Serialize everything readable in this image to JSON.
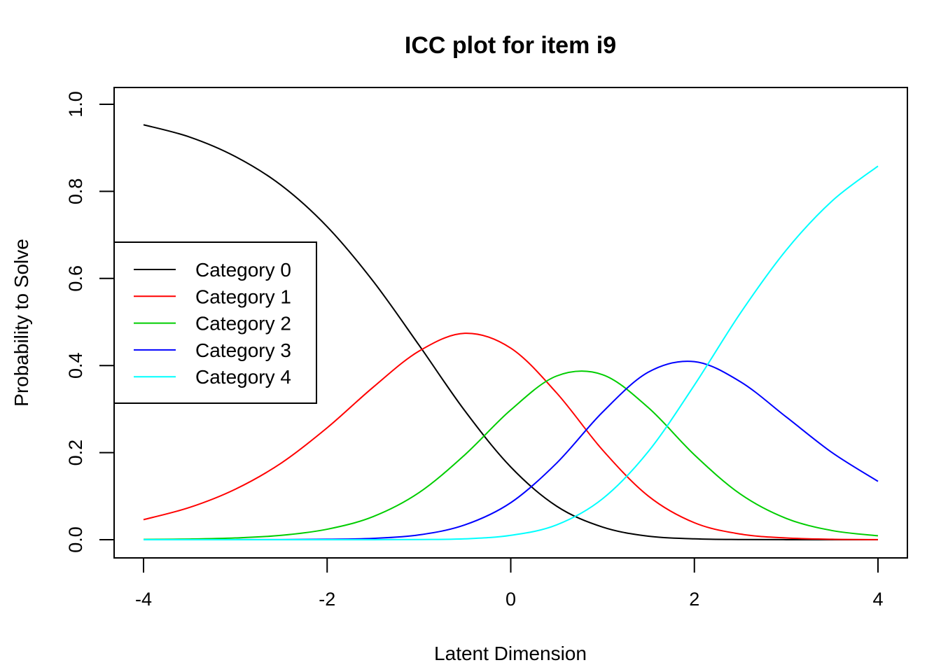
{
  "chart_data": {
    "type": "line",
    "title": "ICC plot for item i9",
    "xlabel": "Latent Dimension",
    "ylabel": "Probability to Solve",
    "xlim": [
      -4,
      4
    ],
    "ylim": [
      0,
      1
    ],
    "x_ticks": [
      "-4",
      "-2",
      "0",
      "2",
      "4"
    ],
    "y_ticks": [
      "0.0",
      "0.2",
      "0.4",
      "0.6",
      "0.8",
      "1.0"
    ],
    "grid": false,
    "legend_position": "left",
    "x": [
      -4,
      -3.5,
      -3,
      -2.5,
      -2,
      -1.5,
      -1,
      -0.5,
      0,
      0.5,
      1,
      1.5,
      2,
      2.5,
      3,
      3.5,
      4
    ],
    "series": [
      {
        "name": "Category 0",
        "color": "#000000",
        "values": [
          0.953,
          0.925,
          0.88,
          0.814,
          0.719,
          0.594,
          0.447,
          0.296,
          0.167,
          0.077,
          0.029,
          0.008,
          0.002,
          0.0004,
          0.0001,
          0.0,
          0.0
        ]
      },
      {
        "name": "Category 1",
        "color": "#FF0000",
        "values": [
          0.046,
          0.074,
          0.116,
          0.176,
          0.257,
          0.35,
          0.433,
          0.474,
          0.44,
          0.337,
          0.206,
          0.1,
          0.039,
          0.013,
          0.004,
          0.001,
          0.0002
        ]
      },
      {
        "name": "Category 2",
        "color": "#00CD00",
        "values": [
          0.0006,
          0.0015,
          0.004,
          0.01,
          0.024,
          0.053,
          0.108,
          0.195,
          0.298,
          0.376,
          0.379,
          0.303,
          0.195,
          0.105,
          0.049,
          0.021,
          0.009
        ]
      },
      {
        "name": "Category 3",
        "color": "#0000FF",
        "values": [
          0.0,
          0.0,
          0.0001,
          0.0002,
          0.001,
          0.003,
          0.011,
          0.034,
          0.085,
          0.176,
          0.293,
          0.385,
          0.409,
          0.363,
          0.282,
          0.2,
          0.134
        ]
      },
      {
        "name": "Category 4",
        "color": "#00FFFF",
        "values": [
          0.0,
          0.0,
          0.0,
          0.0,
          0.0,
          0.0001,
          0.0005,
          0.002,
          0.01,
          0.034,
          0.094,
          0.203,
          0.355,
          0.52,
          0.665,
          0.778,
          0.858
        ]
      }
    ]
  }
}
